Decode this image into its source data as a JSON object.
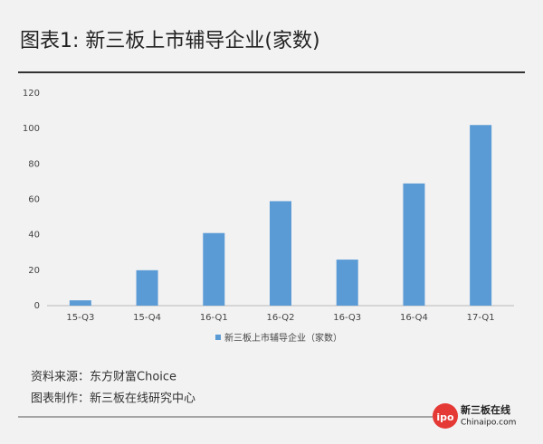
{
  "chart_data": {
    "type": "bar",
    "title": "图表1: 新三板上市辅导企业(家数)",
    "categories": [
      "15-Q3",
      "15-Q4",
      "16-Q1",
      "16-Q2",
      "16-Q3",
      "16-Q4",
      "17-Q1"
    ],
    "series": [
      {
        "name": "新三板上市辅导企业（家数）",
        "color": "#5b9bd5",
        "values": [
          3,
          20,
          41,
          59,
          26,
          69,
          102
        ]
      }
    ],
    "ylim": [
      0,
      120
    ],
    "yticks": [
      0,
      20,
      40,
      60,
      80,
      100,
      120
    ],
    "grid": false,
    "source": "资料来源：东方财富Choice",
    "credit": "图表制作：新三板在线研究中心",
    "logo": {
      "badge": "ipo",
      "name": "新三板在线",
      "site": "Chinaipo.com"
    }
  }
}
